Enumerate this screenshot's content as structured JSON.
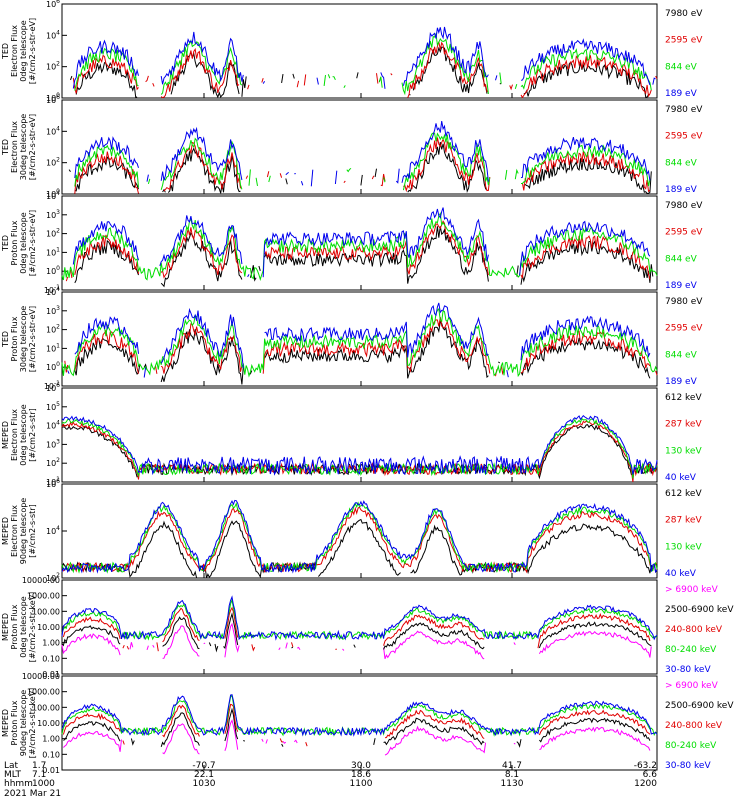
{
  "figure": {
    "date": "2021 Mar 21",
    "row_labels": [
      "Lat",
      "MLT",
      "hhmm"
    ],
    "x_ticks": [
      {
        "lat": "1.7",
        "mlt": "7.1",
        "hhmm": "1000"
      },
      {
        "lat": "-70.7",
        "mlt": "22.1",
        "hhmm": "1030"
      },
      {
        "lat": "30.0",
        "mlt": "18.6",
        "hhmm": "1100"
      },
      {
        "lat": "41.7",
        "mlt": "8.1",
        "hhmm": "1130"
      },
      {
        "lat": "-63.2",
        "mlt": "6.6",
        "hhmm": "1200"
      }
    ]
  },
  "colors": {
    "black": "#000000",
    "red": "#e00000",
    "green": "#00dd00",
    "blue": "#0000ee",
    "magenta": "#ff00ff"
  },
  "chart_data": [
    {
      "type": "line",
      "ylabel": [
        "TED",
        "Electron Flux",
        "0deg telescope",
        "[#/cm2-s-str-eV]"
      ],
      "yscale": "log",
      "ylim": [
        1,
        1000000
      ],
      "ytick_labels": [
        "10^0",
        "10^2",
        "10^4",
        "10^6"
      ],
      "legend": [
        "7980 eV",
        "2595 eV",
        "844 eV",
        "189 eV"
      ],
      "series_colors": [
        "black",
        "red",
        "green",
        "blue"
      ],
      "profile": "ted"
    },
    {
      "type": "line",
      "ylabel": [
        "TED",
        "Electron Flux",
        "30deg telescope",
        "[#/cm2-s-str-eV]"
      ],
      "yscale": "log",
      "ylim": [
        1,
        1000000
      ],
      "ytick_labels": [
        "10^0",
        "10^2",
        "10^4",
        "10^6"
      ],
      "legend": [
        "7980 eV",
        "2595 eV",
        "844 eV",
        "189 eV"
      ],
      "series_colors": [
        "black",
        "red",
        "green",
        "blue"
      ],
      "profile": "ted"
    },
    {
      "type": "line",
      "ylabel": [
        "TED",
        "Proton Flux",
        "0deg telescope",
        "[#/cm2-s-str-eV]"
      ],
      "yscale": "log",
      "ylim": [
        0.1,
        100000
      ],
      "ytick_labels": [
        "10^-1",
        "10^0",
        "10^1",
        "10^2",
        "10^3",
        "10^4"
      ],
      "legend": [
        "7980 eV",
        "2595 eV",
        "844 eV",
        "189 eV"
      ],
      "series_colors": [
        "black",
        "red",
        "green",
        "blue"
      ],
      "profile": "tedp"
    },
    {
      "type": "line",
      "ylabel": [
        "TED",
        "Proton Flux",
        "30deg telescope",
        "[#/cm2-s-str-eV]"
      ],
      "yscale": "log",
      "ylim": [
        0.1,
        100000
      ],
      "ytick_labels": [
        "10^-1",
        "10^0",
        "10^1",
        "10^2",
        "10^3",
        "10^4"
      ],
      "legend": [
        "7980 eV",
        "2595 eV",
        "844 eV",
        "189 eV"
      ],
      "series_colors": [
        "black",
        "red",
        "green",
        "blue"
      ],
      "profile": "tedp"
    },
    {
      "type": "line",
      "ylabel": [
        "MEPED",
        "Electron Flux",
        "0deg telescope",
        "[#/cm2-s-str]"
      ],
      "yscale": "log",
      "ylim": [
        10,
        1000000
      ],
      "ytick_labels": [
        "10^1",
        "10^2",
        "10^3",
        "10^4",
        "10^5",
        "10^6"
      ],
      "legend": [
        "612 keV",
        "287 keV",
        "130 keV",
        "40 keV"
      ],
      "series_colors": [
        "black",
        "red",
        "green",
        "blue"
      ],
      "profile": "mep0"
    },
    {
      "type": "line",
      "ylabel": [
        "MEPED",
        "Electron Flux",
        "90deg telescope",
        "[#/cm2-s-str]"
      ],
      "yscale": "log",
      "ylim": [
        10,
        1000000
      ],
      "ytick_labels": [
        "10^2",
        "10^4",
        "10^6"
      ],
      "legend": [
        "612 keV",
        "287 keV",
        "130 keV",
        "40 keV"
      ],
      "series_colors": [
        "black",
        "red",
        "green",
        "blue"
      ],
      "profile": "mep90"
    },
    {
      "type": "line",
      "ylabel": [
        "MEPED",
        "Proton Flux",
        "0deg telescope",
        "[#/cm2-s-str-keV]"
      ],
      "yscale": "log",
      "ylim": [
        0.01,
        10000
      ],
      "ytick_labels": [
        "0.01",
        "0.10",
        "1.00",
        "10.00",
        "100.00",
        "1000.00",
        "10000.00"
      ],
      "legend": [
        "> 6900 keV",
        "2500-6900 keV",
        "240-800 keV",
        "80-240 keV",
        "30-80 keV"
      ],
      "series_colors": [
        "magenta",
        "black",
        "red",
        "green",
        "blue"
      ],
      "profile": "mepp0"
    },
    {
      "type": "line",
      "ylabel": [
        "MEPED",
        "Proton Flux",
        "90deg telescope",
        "[#/cm2-s-str-keV]"
      ],
      "yscale": "log",
      "ylim": [
        0.01,
        10000
      ],
      "ytick_labels": [
        "0.01",
        "0.10",
        "1.00",
        "10.00",
        "100.00",
        "1000.00",
        "10000.00"
      ],
      "legend": [
        "> 6900 keV",
        "2500-6900 keV",
        "240-800 keV",
        "80-240 keV",
        "30-80 keV"
      ],
      "series_colors": [
        "magenta",
        "black",
        "red",
        "green",
        "blue"
      ],
      "profile": "mepp90"
    }
  ]
}
